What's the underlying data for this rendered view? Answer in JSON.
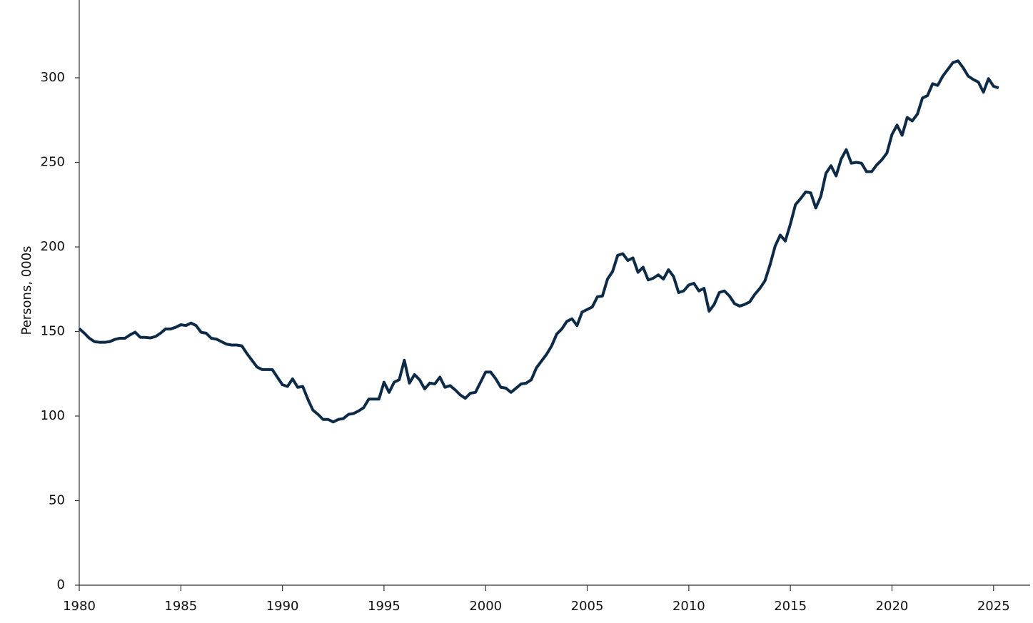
{
  "chart_data": {
    "type": "line",
    "y_label": "Persons, 000s",
    "x": [
      1980,
      1980.25,
      1980.5,
      1980.75,
      1981,
      1981.25,
      1981.5,
      1981.75,
      1982,
      1982.25,
      1982.5,
      1982.75,
      1983,
      1983.25,
      1983.5,
      1983.75,
      1984,
      1984.25,
      1984.5,
      1984.75,
      1985,
      1985.25,
      1985.5,
      1985.75,
      1986,
      1986.25,
      1986.5,
      1986.75,
      1987,
      1987.25,
      1987.5,
      1987.75,
      1988,
      1988.25,
      1988.5,
      1988.75,
      1989,
      1989.25,
      1989.5,
      1989.75,
      1990,
      1990.25,
      1990.5,
      1990.75,
      1991,
      1991.25,
      1991.5,
      1991.75,
      1992,
      1992.25,
      1992.5,
      1992.75,
      1993,
      1993.25,
      1993.5,
      1993.75,
      1994,
      1994.25,
      1994.5,
      1994.75,
      1995,
      1995.25,
      1995.5,
      1995.75,
      1996,
      1996.25,
      1996.5,
      1996.75,
      1997,
      1997.25,
      1997.5,
      1997.75,
      1998,
      1998.25,
      1998.5,
      1998.75,
      1999,
      1999.25,
      1999.5,
      1999.75,
      2000,
      2000.25,
      2000.5,
      2000.75,
      2001,
      2001.25,
      2001.5,
      2001.75,
      2002,
      2002.25,
      2002.5,
      2002.75,
      2003,
      2003.25,
      2003.5,
      2003.75,
      2004,
      2004.25,
      2004.5,
      2004.75,
      2005,
      2005.25,
      2005.5,
      2005.75,
      2006,
      2006.25,
      2006.5,
      2006.75,
      2007,
      2007.25,
      2007.5,
      2007.75,
      2008,
      2008.25,
      2008.5,
      2008.75,
      2009,
      2009.25,
      2009.5,
      2009.75,
      2010,
      2010.25,
      2010.5,
      2010.75,
      2011,
      2011.25,
      2011.5,
      2011.75,
      2012,
      2012.25,
      2012.5,
      2012.75,
      2013,
      2013.25,
      2013.5,
      2013.75,
      2014,
      2014.25,
      2014.5,
      2014.75,
      2015,
      2015.25,
      2015.5,
      2015.75,
      2016,
      2016.25,
      2016.5,
      2016.75,
      2017,
      2017.25,
      2017.5,
      2017.75,
      2018,
      2018.25,
      2018.5,
      2018.75,
      2019,
      2019.25,
      2019.5,
      2019.75,
      2020,
      2020.25,
      2020.5,
      2020.75,
      2021,
      2021.25,
      2021.5,
      2021.75,
      2022,
      2022.25,
      2022.5,
      2022.75,
      2023,
      2023.25,
      2023.5,
      2023.75,
      2024,
      2024.25,
      2024.5,
      2024.75,
      2025,
      2025.25
    ],
    "series": [
      {
        "color": "#0d2a47",
        "values": [
          151.7,
          149,
          146,
          144,
          143.6,
          143.6,
          144,
          145.3,
          146,
          146,
          148,
          149.6,
          146.6,
          146.5,
          146.2,
          147,
          149,
          151.5,
          151.5,
          152.5,
          154,
          153.5,
          155,
          153.5,
          149.5,
          149,
          146,
          145.5,
          144,
          142.5,
          142,
          142,
          141.5,
          137,
          133,
          129,
          127.5,
          127.5,
          127.5,
          123,
          118.5,
          117.5,
          122,
          117,
          117.5,
          110,
          103.5,
          101,
          98,
          98,
          96.5,
          98,
          98.5,
          101,
          101.5,
          103,
          105,
          110,
          110,
          110,
          120,
          114,
          120,
          121.5,
          133,
          119.5,
          124.5,
          121.5,
          116,
          119.5,
          119,
          123,
          117,
          118,
          115.5,
          112.5,
          110.5,
          113.5,
          114,
          120,
          126,
          126,
          122,
          117,
          116.5,
          114,
          116.5,
          119,
          119.5,
          121.5,
          128.5,
          132.5,
          136.5,
          141.5,
          148.5,
          151.5,
          156,
          157.5,
          153.5,
          161.5,
          163,
          164.5,
          170.5,
          171,
          181,
          185.5,
          195,
          196,
          192,
          193.5,
          185,
          188,
          180.5,
          181.5,
          183.5,
          181,
          186.5,
          182.5,
          173,
          174,
          177.5,
          178.5,
          174,
          175.5,
          162,
          166,
          173,
          174,
          171,
          166.5,
          165,
          166,
          167.5,
          172,
          175.5,
          180,
          189.5,
          200.5,
          207,
          203.5,
          213.5,
          225,
          228.5,
          232.5,
          232,
          223,
          230,
          243.5,
          248,
          242,
          252,
          257.5,
          249.5,
          250,
          249.5,
          244.5,
          244.5,
          248.5,
          251.5,
          255.5,
          266.5,
          272,
          266,
          276.5,
          274.5,
          278.5,
          288,
          289.5,
          296.5,
          295.5,
          301,
          305,
          309,
          310,
          306,
          301,
          299,
          297.5,
          291.5,
          299.5,
          295,
          294
        ]
      }
    ],
    "xlim": [
      1980,
      2026.8
    ],
    "xticks": [
      1980,
      1985,
      1990,
      1995,
      2000,
      2005,
      2010,
      2015,
      2020,
      2025
    ],
    "ylim": [
      0,
      346
    ],
    "yticks": [
      0,
      50,
      100,
      150,
      200,
      250,
      300
    ]
  }
}
